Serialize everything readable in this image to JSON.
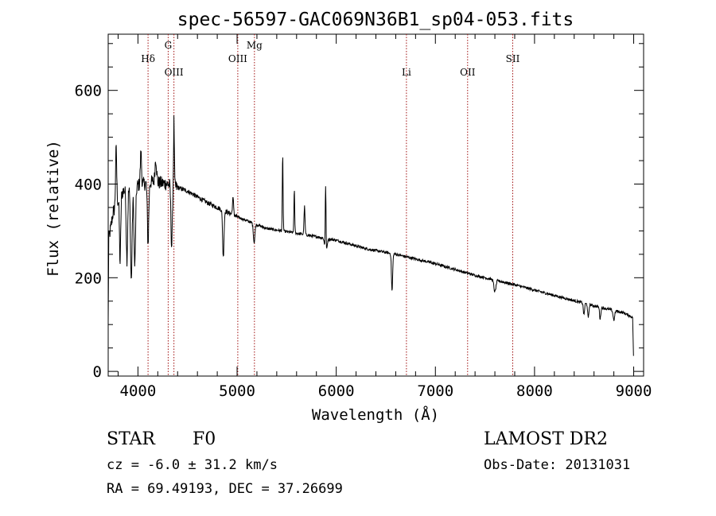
{
  "chart_data": {
    "type": "line",
    "title": "spec-56597-GAC069N36B1_sp04-053.fits",
    "xlabel": "Wavelength (Å)",
    "ylabel": "Flux (relative)",
    "xlim": [
      3700,
      9100
    ],
    "ylim": [
      -10,
      720
    ],
    "xticks": [
      4000,
      5000,
      6000,
      7000,
      8000,
      9000
    ],
    "yticks": [
      0,
      200,
      400,
      600
    ],
    "line_color": "#000000",
    "marker_color": "#a01010",
    "spectral_lines": [
      {
        "name": "Hδ",
        "wavelength": 4102,
        "label_row": "upper"
      },
      {
        "name": "G",
        "wavelength": 4305,
        "label_row": "top"
      },
      {
        "name": "OIII",
        "wavelength": 4363,
        "label_row": "lower"
      },
      {
        "name": "OIII",
        "wavelength": 5007,
        "label_row": "upper"
      },
      {
        "name": "Mg",
        "wavelength": 5175,
        "label_row": "top"
      },
      {
        "name": "Li",
        "wavelength": 6708,
        "label_row": "lower"
      },
      {
        "name": "OII",
        "wavelength": 7325,
        "label_row": "lower"
      },
      {
        "name": "SII",
        "wavelength": 7780,
        "label_row": "upper"
      }
    ],
    "continuum": [
      [
        3700,
        100
      ],
      [
        3705,
        280
      ],
      [
        3750,
        340
      ],
      [
        3850,
        385
      ],
      [
        3950,
        395
      ],
      [
        4050,
        400
      ],
      [
        4150,
        405
      ],
      [
        4300,
        400
      ],
      [
        4500,
        385
      ],
      [
        4700,
        360
      ],
      [
        5000,
        330
      ],
      [
        5300,
        305
      ],
      [
        5600,
        295
      ],
      [
        6000,
        280
      ],
      [
        6300,
        262
      ],
      [
        6600,
        250
      ],
      [
        7000,
        230
      ],
      [
        7400,
        205
      ],
      [
        7800,
        185
      ],
      [
        8200,
        162
      ],
      [
        8600,
        140
      ],
      [
        8900,
        125
      ],
      [
        8990,
        115
      ],
      [
        9000,
        10
      ]
    ],
    "features": [
      {
        "x": 3780,
        "amp": 120,
        "w": 6
      },
      {
        "x": 3820,
        "amp": -140,
        "w": 6
      },
      {
        "x": 3889,
        "amp": -150,
        "w": 7
      },
      {
        "x": 3933,
        "amp": -200,
        "w": 8
      },
      {
        "x": 3968,
        "amp": -170,
        "w": 8
      },
      {
        "x": 4030,
        "amp": 70,
        "w": 6
      },
      {
        "x": 4102,
        "amp": -130,
        "w": 7
      },
      {
        "x": 4180,
        "amp": 50,
        "w": 8
      },
      {
        "x": 4340,
        "amp": -130,
        "w": 7
      },
      {
        "x": 4363,
        "amp": 140,
        "w": 4
      },
      {
        "x": 4861,
        "amp": -100,
        "w": 7
      },
      {
        "x": 4959,
        "amp": 35,
        "w": 6
      },
      {
        "x": 5172,
        "amp": -40,
        "w": 8
      },
      {
        "x": 5460,
        "amp": 160,
        "w": 4
      },
      {
        "x": 5577,
        "amp": 90,
        "w": 4
      },
      {
        "x": 5680,
        "amp": 60,
        "w": 5
      },
      {
        "x": 5893,
        "amp": 150,
        "w": 4
      },
      {
        "x": 5895,
        "amp": -40,
        "w": 10
      },
      {
        "x": 6563,
        "amp": -80,
        "w": 6
      },
      {
        "x": 7600,
        "amp": -25,
        "w": 10
      },
      {
        "x": 8498,
        "amp": -25,
        "w": 6
      },
      {
        "x": 8542,
        "amp": -30,
        "w": 6
      },
      {
        "x": 8662,
        "amp": -25,
        "w": 6
      },
      {
        "x": 8800,
        "amp": -20,
        "w": 8
      }
    ]
  },
  "info": {
    "object_class": "STAR",
    "subclass": "F0",
    "survey": "LAMOST DR2",
    "cz": "cz = -6.0 ± 31.2 km/s",
    "obs_date": "Obs-Date: 20131031",
    "coords": "RA =  69.49193, DEC =  37.26699"
  }
}
